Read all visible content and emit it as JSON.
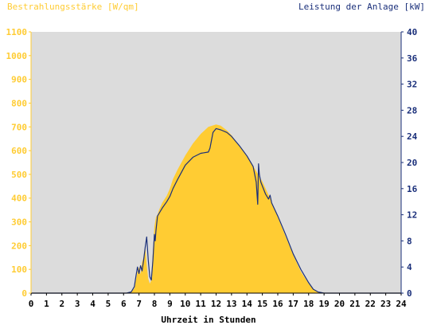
{
  "chart_data": {
    "type": "area",
    "left_axis_title": "Bestrahlungsstärke [W/qm]",
    "right_axis_title": "Leistung der Anlage [kW]",
    "xlabel": "Uhrzeit in Stunden",
    "xlim": [
      0,
      24
    ],
    "ylim_left": [
      0,
      1100
    ],
    "ylim_right": [
      0,
      40
    ],
    "x_ticks": [
      "0",
      "1",
      "2",
      "3",
      "4",
      "5",
      "6",
      "7",
      "8",
      "9",
      "10",
      "11",
      "12",
      "13",
      "14",
      "15",
      "16",
      "17",
      "18",
      "19",
      "20",
      "21",
      "22",
      "23",
      "24"
    ],
    "y_left_ticks": [
      "0",
      "100",
      "200",
      "300",
      "400",
      "500",
      "600",
      "700",
      "800",
      "900",
      "1000",
      "1100"
    ],
    "y_right_ticks": [
      "0",
      "4",
      "8",
      "12",
      "16",
      "20",
      "24",
      "28",
      "32",
      "36",
      "40"
    ],
    "grid": false,
    "colors": {
      "irradiance_fill": "#ffcc33",
      "power_line": "#1a2f7a",
      "plot_background": "#dcdcdc",
      "left_axis_text": "#ffcc33",
      "right_axis_text": "#1a2f7a"
    },
    "series": [
      {
        "axis": "left",
        "style": "filled-area",
        "x": [
          0,
          6.2,
          6.5,
          6.7,
          6.9,
          7.0,
          7.1,
          7.2,
          7.3,
          7.4,
          7.5,
          7.6,
          7.7,
          7.8,
          7.9,
          8.0,
          8.1,
          8.2,
          8.3,
          8.5,
          8.8,
          9.0,
          9.2,
          9.5,
          10.0,
          10.5,
          11.0,
          11.5,
          12.0,
          12.3,
          12.7,
          13.0,
          13.5,
          14.0,
          14.5,
          15.0,
          15.5,
          16.0,
          16.5,
          17.0,
          17.5,
          18.0,
          18.3,
          18.6,
          18.8,
          19.0,
          24
        ],
        "values": [
          0,
          0,
          5,
          20,
          90,
          110,
          80,
          130,
          150,
          200,
          120,
          60,
          40,
          55,
          180,
          280,
          320,
          330,
          350,
          380,
          410,
          440,
          480,
          520,
          580,
          630,
          670,
          700,
          710,
          705,
          685,
          665,
          620,
          575,
          525,
          470,
          400,
          320,
          240,
          160,
          90,
          40,
          15,
          5,
          0,
          0,
          0
        ]
      },
      {
        "axis": "right",
        "style": "line",
        "x": [
          0,
          6.2,
          6.5,
          6.7,
          6.8,
          6.9,
          7.0,
          7.1,
          7.2,
          7.3,
          7.4,
          7.5,
          7.6,
          7.7,
          7.8,
          7.9,
          8.0,
          8.05,
          8.1,
          8.2,
          8.3,
          8.5,
          8.8,
          9.0,
          9.2,
          9.5,
          10.0,
          10.5,
          11.0,
          11.5,
          11.6,
          11.8,
          12.0,
          12.3,
          12.7,
          13.0,
          13.5,
          14.0,
          14.4,
          14.6,
          14.7,
          14.75,
          14.8,
          14.9,
          15.0,
          15.2,
          15.4,
          15.5,
          15.6,
          16.0,
          16.5,
          17.0,
          17.5,
          18.0,
          18.3,
          18.6,
          19.0,
          24
        ],
        "values": [
          0,
          0,
          0.2,
          1.0,
          2.6,
          4.0,
          3.0,
          4.2,
          3.4,
          5.0,
          7.0,
          8.6,
          5.0,
          2.5,
          2.0,
          5.0,
          9.0,
          8.0,
          9.5,
          11.8,
          12.2,
          13.0,
          14.0,
          14.8,
          16.0,
          17.4,
          19.6,
          20.8,
          21.4,
          21.6,
          22.2,
          24.6,
          25.2,
          25.0,
          24.6,
          24.0,
          22.6,
          21.0,
          19.4,
          17.0,
          13.6,
          19.8,
          18.2,
          17.0,
          16.4,
          15.2,
          14.4,
          15.0,
          13.8,
          11.8,
          9.0,
          6.0,
          3.6,
          1.6,
          0.6,
          0.2,
          0,
          0
        ]
      }
    ]
  }
}
